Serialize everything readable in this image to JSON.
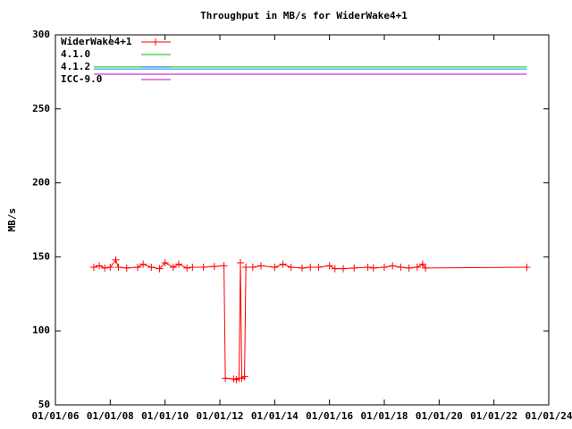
{
  "chart_data": {
    "type": "line",
    "title": "Throughput in MB/s for WiderWake4+1",
    "ylabel": "MB/s",
    "xlim": [
      2006,
      2024
    ],
    "xticks": [
      {
        "value": 2006,
        "label": "01/01/06"
      },
      {
        "value": 2008,
        "label": "01/01/08"
      },
      {
        "value": 2010,
        "label": "01/01/10"
      },
      {
        "value": 2012,
        "label": "01/01/12"
      },
      {
        "value": 2014,
        "label": "01/01/14"
      },
      {
        "value": 2016,
        "label": "01/01/16"
      },
      {
        "value": 2018,
        "label": "01/01/18"
      },
      {
        "value": 2020,
        "label": "01/01/20"
      },
      {
        "value": 2022,
        "label": "01/01/22"
      },
      {
        "value": 2024,
        "label": "01/01/24"
      }
    ],
    "ylim": [
      50,
      300
    ],
    "yticks": [
      50,
      100,
      150,
      200,
      250,
      300
    ],
    "legend": "top-left",
    "series": [
      {
        "name": "WiderWake4+1",
        "color": "#ff0000",
        "markers": true,
        "x": [
          2007.4,
          2007.6,
          2007.8,
          2008.0,
          2008.2,
          2008.3,
          2008.6,
          2009.0,
          2009.2,
          2009.5,
          2009.8,
          2010.0,
          2010.3,
          2010.5,
          2010.8,
          2011.0,
          2011.4,
          2011.8,
          2012.15,
          2012.2,
          2012.5,
          2012.6,
          2012.7,
          2012.75,
          2012.8,
          2012.9,
          2012.95,
          2013.2,
          2013.5,
          2014.0,
          2014.3,
          2014.6,
          2015.0,
          2015.3,
          2015.6,
          2016.0,
          2016.2,
          2016.5,
          2016.9,
          2017.4,
          2017.6,
          2018.0,
          2018.3,
          2018.6,
          2018.9,
          2019.2,
          2019.4,
          2019.5,
          2023.2
        ],
        "values": [
          143,
          144,
          142.5,
          143,
          148,
          143,
          142.5,
          143,
          145,
          143,
          142,
          146,
          143,
          145,
          142.5,
          143,
          143,
          143.5,
          144,
          68,
          67.5,
          67,
          68,
          146,
          68,
          69,
          143,
          143,
          144,
          143,
          145,
          143,
          142.5,
          143,
          143,
          144,
          142,
          142,
          142.5,
          143,
          142.5,
          143,
          144,
          143,
          142.5,
          143,
          145,
          142.5,
          143
        ]
      },
      {
        "name": "4.1.0",
        "color": "#00c000",
        "markers": false,
        "x": [
          2007.4,
          2023.2
        ],
        "values": [
          278.3,
          278.3
        ]
      },
      {
        "name": "4.1.2",
        "color": "#0080ff",
        "markers": false,
        "x": [
          2007.4,
          2023.2
        ],
        "values": [
          277,
          277
        ]
      },
      {
        "name": "ICC-9.0",
        "color": "#c000c0",
        "markers": false,
        "x": [
          2007.4,
          2023.2
        ],
        "values": [
          273.4,
          273.4
        ]
      }
    ]
  }
}
